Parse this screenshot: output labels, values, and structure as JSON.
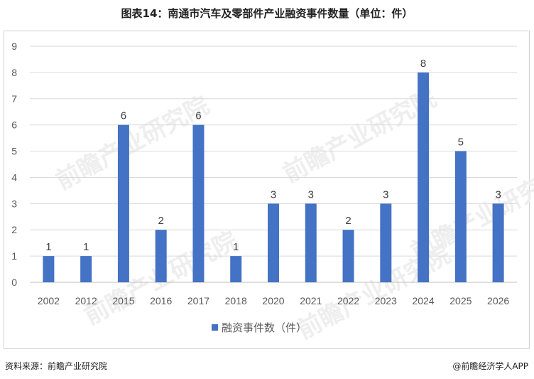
{
  "title": "图表14：南通市汽车及零部件产业融资事件数量（单位：件）",
  "watermark_text": "前瞻产业研究院",
  "source": "资料来源：前瞻产业研究院",
  "brand": "@前瞻经济学人APP",
  "colors": {
    "bar": "#4472C4",
    "grid": "#d9d9d9",
    "text": "#595959"
  },
  "chart_data": {
    "type": "bar",
    "categories": [
      "2002",
      "2012",
      "2015",
      "2016",
      "2017",
      "2018",
      "2020",
      "2021",
      "2022",
      "2023",
      "2024",
      "2025",
      "2026"
    ],
    "series": [
      {
        "name": "融资事件数（件）",
        "values": [
          1,
          1,
          6,
          2,
          6,
          1,
          3,
          3,
          2,
          3,
          8,
          5,
          3
        ]
      }
    ],
    "ylim": [
      0,
      9
    ],
    "yticks": [
      0,
      1,
      2,
      3,
      4,
      5,
      6,
      7,
      8,
      9
    ],
    "grid": true,
    "legend": "bottom",
    "data_labels": true
  }
}
